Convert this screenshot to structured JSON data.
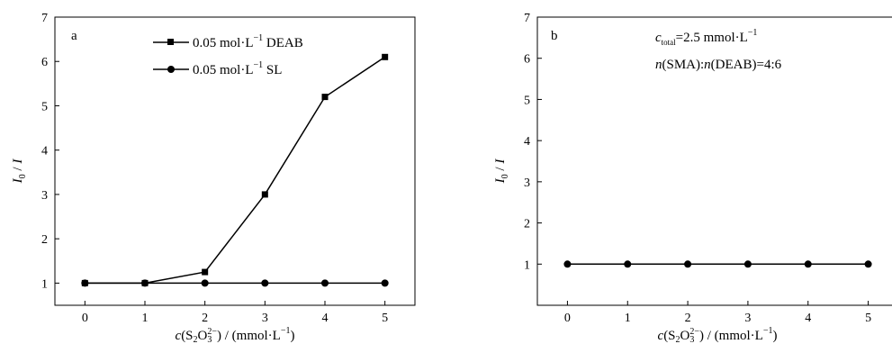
{
  "chart_data": [
    {
      "panel_label": "a",
      "type": "line",
      "x": [
        0,
        1,
        2,
        3,
        4,
        5
      ],
      "series": [
        {
          "name_prefix": "0.05 mol·L",
          "name_sup": "−1",
          "name_suffix": " DEAB",
          "marker": "square",
          "values": [
            1.0,
            1.0,
            1.25,
            3.0,
            5.2,
            6.1
          ]
        },
        {
          "name_prefix": "0.05 mol·L",
          "name_sup": "−1",
          "name_suffix": " SL",
          "marker": "circle",
          "values": [
            1.0,
            1.0,
            1.0,
            1.0,
            1.0,
            1.0
          ]
        }
      ],
      "xlim": [
        -0.5,
        5.5
      ],
      "ylim": [
        0.5,
        7
      ],
      "xticks": [
        "0",
        "1",
        "2",
        "3",
        "4",
        "5"
      ],
      "yticks": [
        "1",
        "2",
        "3",
        "4",
        "5",
        "6",
        "7"
      ],
      "ylabel": {
        "I0": "I",
        "sub": "0",
        "slash": " / ",
        "I": "I"
      },
      "xlabel": {
        "c": "c",
        "open": "(S",
        "s2": "2",
        "o": "O",
        "sub3": "3",
        "sup": "2−",
        "close": ") / (mmol·L",
        "unit_sup": "−1",
        "end": ")"
      },
      "legend_position": "top-center"
    },
    {
      "panel_label": "b",
      "type": "line",
      "x": [
        0,
        1,
        2,
        3,
        4,
        5
      ],
      "series": [
        {
          "marker": "circle",
          "values": [
            1.0,
            1.0,
            1.0,
            1.0,
            1.0,
            1.0
          ]
        }
      ],
      "xlim": [
        -0.5,
        5.5
      ],
      "ylim": [
        0,
        7
      ],
      "xticks": [
        "0",
        "1",
        "2",
        "3",
        "4",
        "5"
      ],
      "yticks": [
        "1",
        "2",
        "3",
        "4",
        "5",
        "6",
        "7"
      ],
      "ylabel": {
        "I0": "I",
        "sub": "0",
        "slash": " / ",
        "I": "I"
      },
      "xlabel": {
        "c": "c",
        "open": "(S",
        "s2": "2",
        "o": "O",
        "sub3": "3",
        "sup": "2−",
        "close": ") / (mmol·L",
        "unit_sup": "−1",
        "end": ")"
      },
      "annotations": {
        "line1": {
          "c": "c",
          "sub": "total",
          "text": "=2.5 mmol·L",
          "sup": "−1"
        },
        "line2": {
          "n1": "n",
          "t1": "(SMA):",
          "n2": "n",
          "t2": "(DEAB)=4:6"
        }
      }
    }
  ],
  "colors": {
    "line": "#000000",
    "axis": "#000000"
  }
}
